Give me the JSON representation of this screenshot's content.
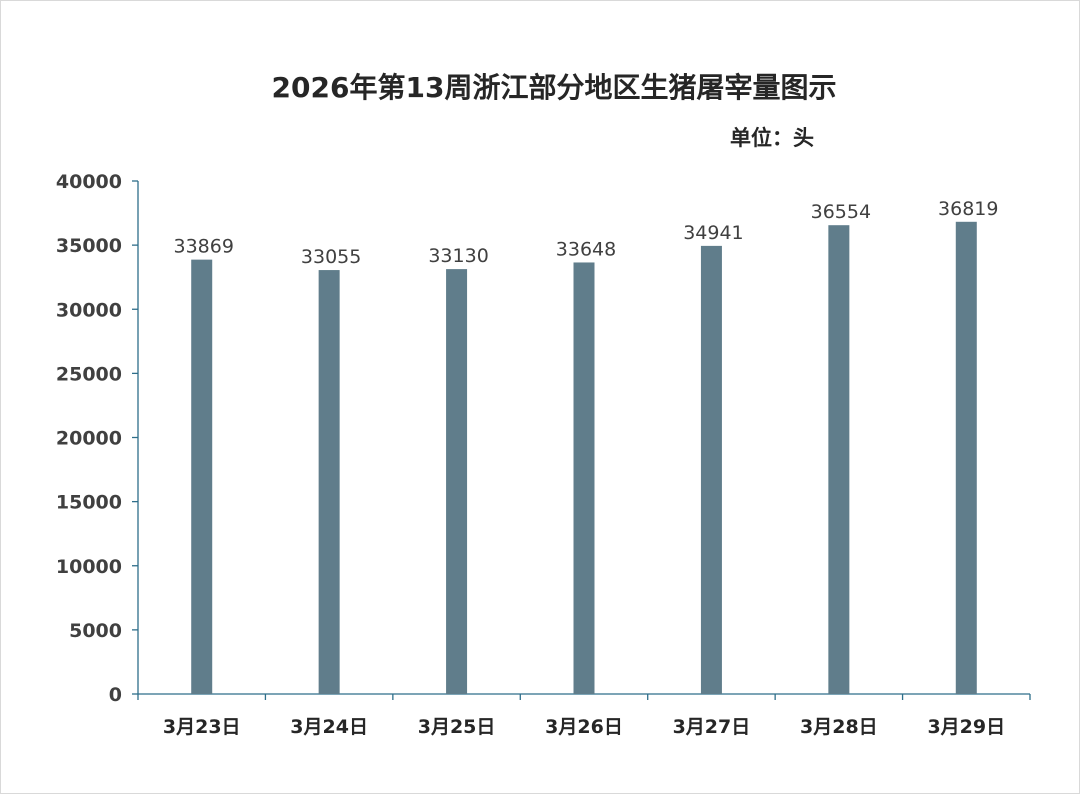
{
  "chart_data": {
    "type": "bar",
    "title": "2026年第13周浙江部分地区生猪屠宰量图示",
    "unit_label": "单位：头",
    "categories": [
      "3月23日",
      "3月24日",
      "3月25日",
      "3月26日",
      "3月27日",
      "3月28日",
      "3月29日"
    ],
    "values": [
      33869,
      33055,
      33130,
      33648,
      34941,
      36554,
      36819
    ],
    "data_labels": [
      "33869",
      "33055",
      "33130",
      "33648",
      "34941",
      "36554",
      "36819"
    ],
    "y_ticks": [
      "0",
      "5000",
      "10000",
      "15000",
      "20000",
      "25000",
      "30000",
      "35000",
      "40000"
    ],
    "ylim": [
      0,
      40000
    ],
    "xlabel": "",
    "ylabel": "",
    "grid": false,
    "legend": "none",
    "bar_color": "#607d8b"
  }
}
